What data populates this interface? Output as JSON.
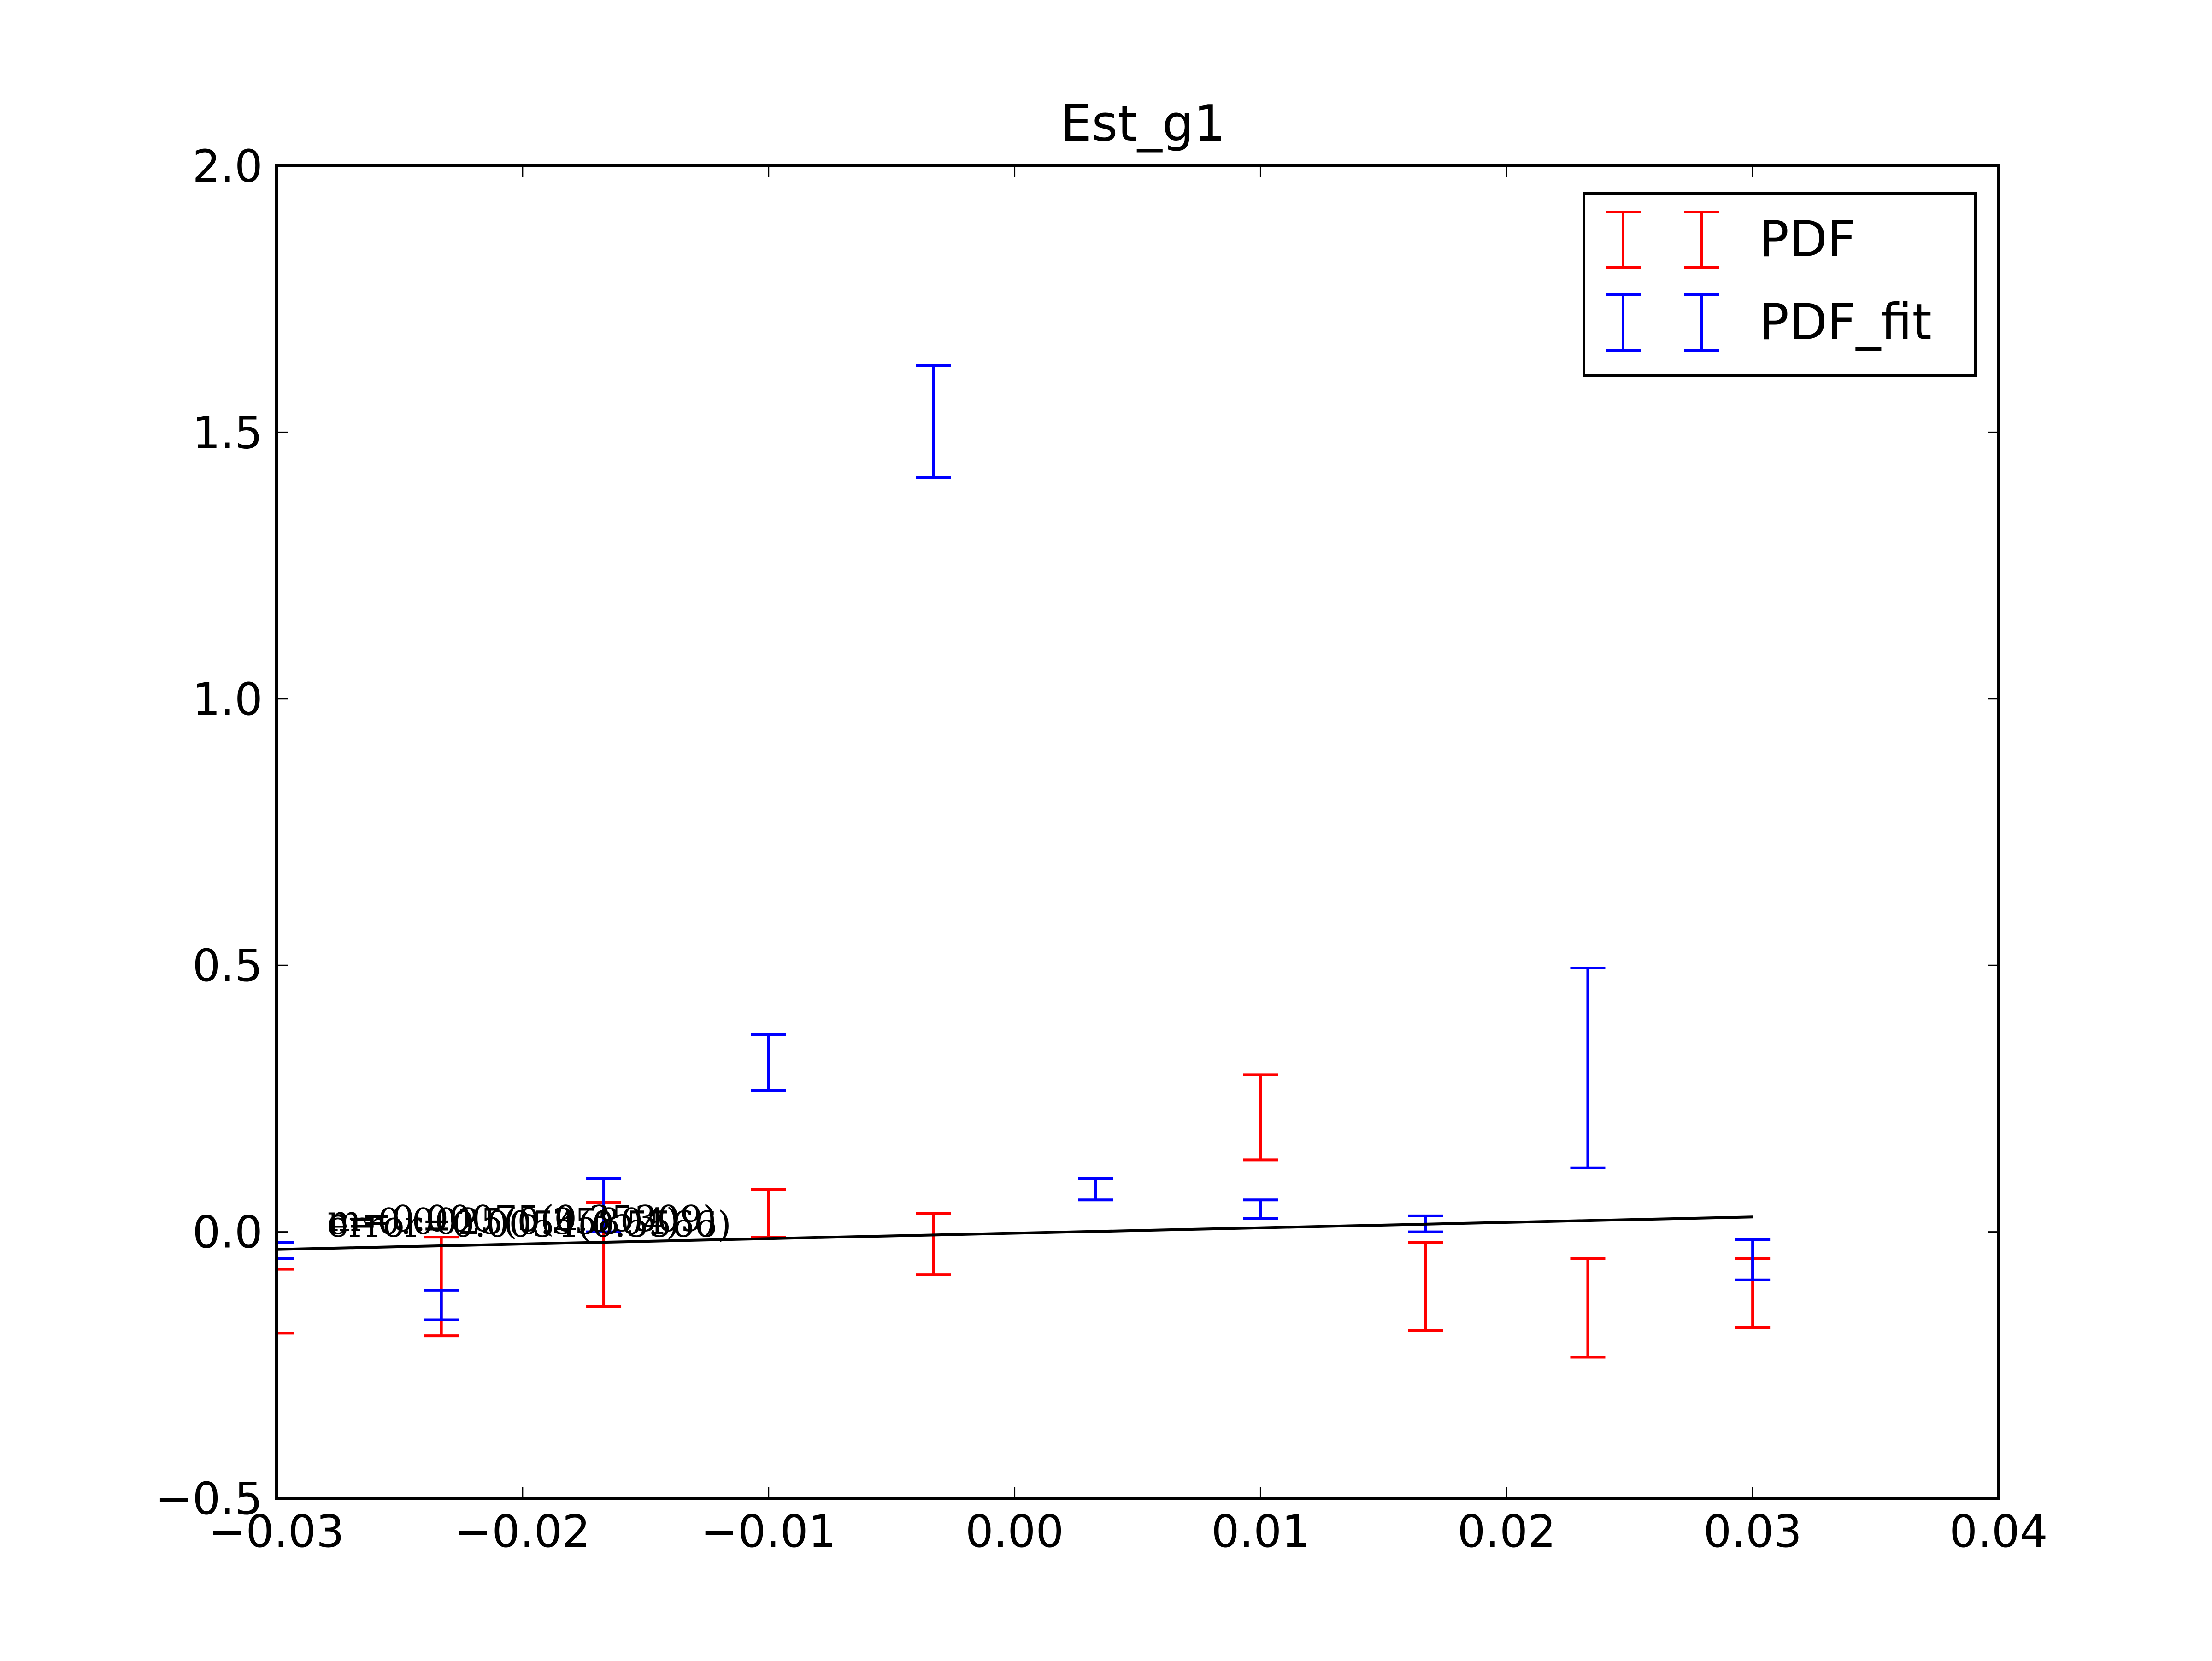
{
  "chart_data": {
    "type": "errorbar",
    "title": "Est_g1",
    "xlabel": "",
    "ylabel": "",
    "xlim": [
      -0.03,
      0.04
    ],
    "ylim": [
      -0.5,
      2.0
    ],
    "x_ticks": [
      -0.03,
      -0.02,
      -0.01,
      0.0,
      0.01,
      0.02,
      0.03,
      0.04
    ],
    "x_tick_labels": [
      "−0.03",
      "−0.02",
      "−0.01",
      "0.00",
      "0.01",
      "0.02",
      "0.03",
      "0.04"
    ],
    "y_ticks": [
      -0.5,
      0.0,
      0.5,
      1.0,
      1.5,
      2.0
    ],
    "y_tick_labels": [
      "−0.5",
      "0.0",
      "0.5",
      "1.0",
      "1.5",
      "2.0"
    ],
    "grid": false,
    "legend_position": "top-right",
    "series": [
      {
        "name": "PDF",
        "color": "#ff0000",
        "x": [
          -0.03,
          -0.0233,
          -0.0167,
          -0.01,
          -0.0033,
          0.0033,
          0.01,
          0.0167,
          0.0233,
          0.03
        ],
        "lower": [
          -0.19,
          -0.195,
          -0.14,
          -0.01,
          -0.08,
          null,
          0.135,
          -0.185,
          -0.235,
          -0.18
        ],
        "upper": [
          -0.07,
          -0.01,
          0.055,
          0.08,
          0.035,
          null,
          0.295,
          -0.02,
          -0.05,
          -0.05
        ]
      },
      {
        "name": "PDF_fit",
        "color": "#0000ff",
        "x": [
          -0.03,
          -0.0233,
          -0.0167,
          -0.01,
          -0.0033,
          0.0033,
          0.01,
          0.0167,
          0.0233,
          0.03
        ],
        "lower": [
          -0.05,
          -0.165,
          0.0,
          0.265,
          1.415,
          0.06,
          0.025,
          0.0,
          0.12,
          -0.09
        ],
        "upper": [
          -0.02,
          -0.11,
          0.1,
          0.37,
          1.625,
          0.1,
          0.06,
          0.03,
          0.495,
          -0.015
        ]
      }
    ],
    "fit_line": {
      "color": "#000000",
      "x": [
        -0.03,
        0.03
      ],
      "y": [
        -0.033,
        0.028
      ]
    },
    "annotation": {
      "line1": "m=0.00075(0.35309)",
      "line2": "c=0.0025(0.35804)",
      "line3": "error=0.0054(0.5566)"
    }
  }
}
